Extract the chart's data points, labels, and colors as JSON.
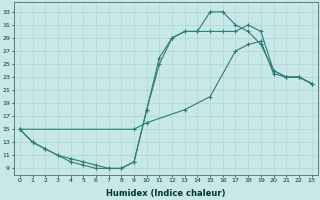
{
  "bg_color": "#c8e8e8",
  "line_color": "#2d7a7a",
  "grid_color": "#aed4d4",
  "xlabel": "Humidex (Indice chaleur)",
  "xlim": [
    -0.5,
    23.5
  ],
  "ylim": [
    8.0,
    34.5
  ],
  "xticks": [
    0,
    1,
    2,
    3,
    4,
    5,
    6,
    7,
    8,
    9,
    10,
    11,
    12,
    13,
    14,
    15,
    16,
    17,
    18,
    19,
    20,
    21,
    22,
    23
  ],
  "yticks": [
    9,
    11,
    13,
    15,
    17,
    19,
    21,
    23,
    25,
    27,
    29,
    31,
    33
  ],
  "curve1_x": [
    0,
    1,
    2,
    3,
    4,
    5,
    6,
    7,
    8,
    9,
    10,
    11,
    12,
    13,
    14,
    15,
    16,
    17,
    18,
    19,
    20,
    21,
    22,
    23
  ],
  "curve1_y": [
    15,
    13,
    12,
    11,
    10,
    9.5,
    9,
    9,
    9,
    10,
    18,
    26,
    29,
    30,
    30,
    33,
    33,
    31,
    30,
    28,
    24,
    23,
    23,
    22
  ],
  "curve2_x": [
    0,
    1,
    2,
    3,
    4,
    5,
    6,
    7,
    8,
    9,
    10,
    11,
    12,
    13,
    14,
    15,
    16,
    17,
    18,
    19,
    20,
    21,
    22,
    23
  ],
  "curve2_y": [
    15,
    13,
    12,
    11,
    10.5,
    10,
    9.5,
    9,
    9,
    10,
    18,
    25,
    29,
    30,
    30,
    30,
    30,
    30,
    31,
    30,
    24,
    23,
    23,
    22
  ],
  "curve3_x": [
    0,
    9,
    10,
    13,
    15,
    17,
    18,
    19,
    20,
    21,
    22,
    23
  ],
  "curve3_y": [
    15,
    15,
    16,
    18,
    20,
    27,
    28,
    28.5,
    23.5,
    23,
    23,
    22
  ]
}
